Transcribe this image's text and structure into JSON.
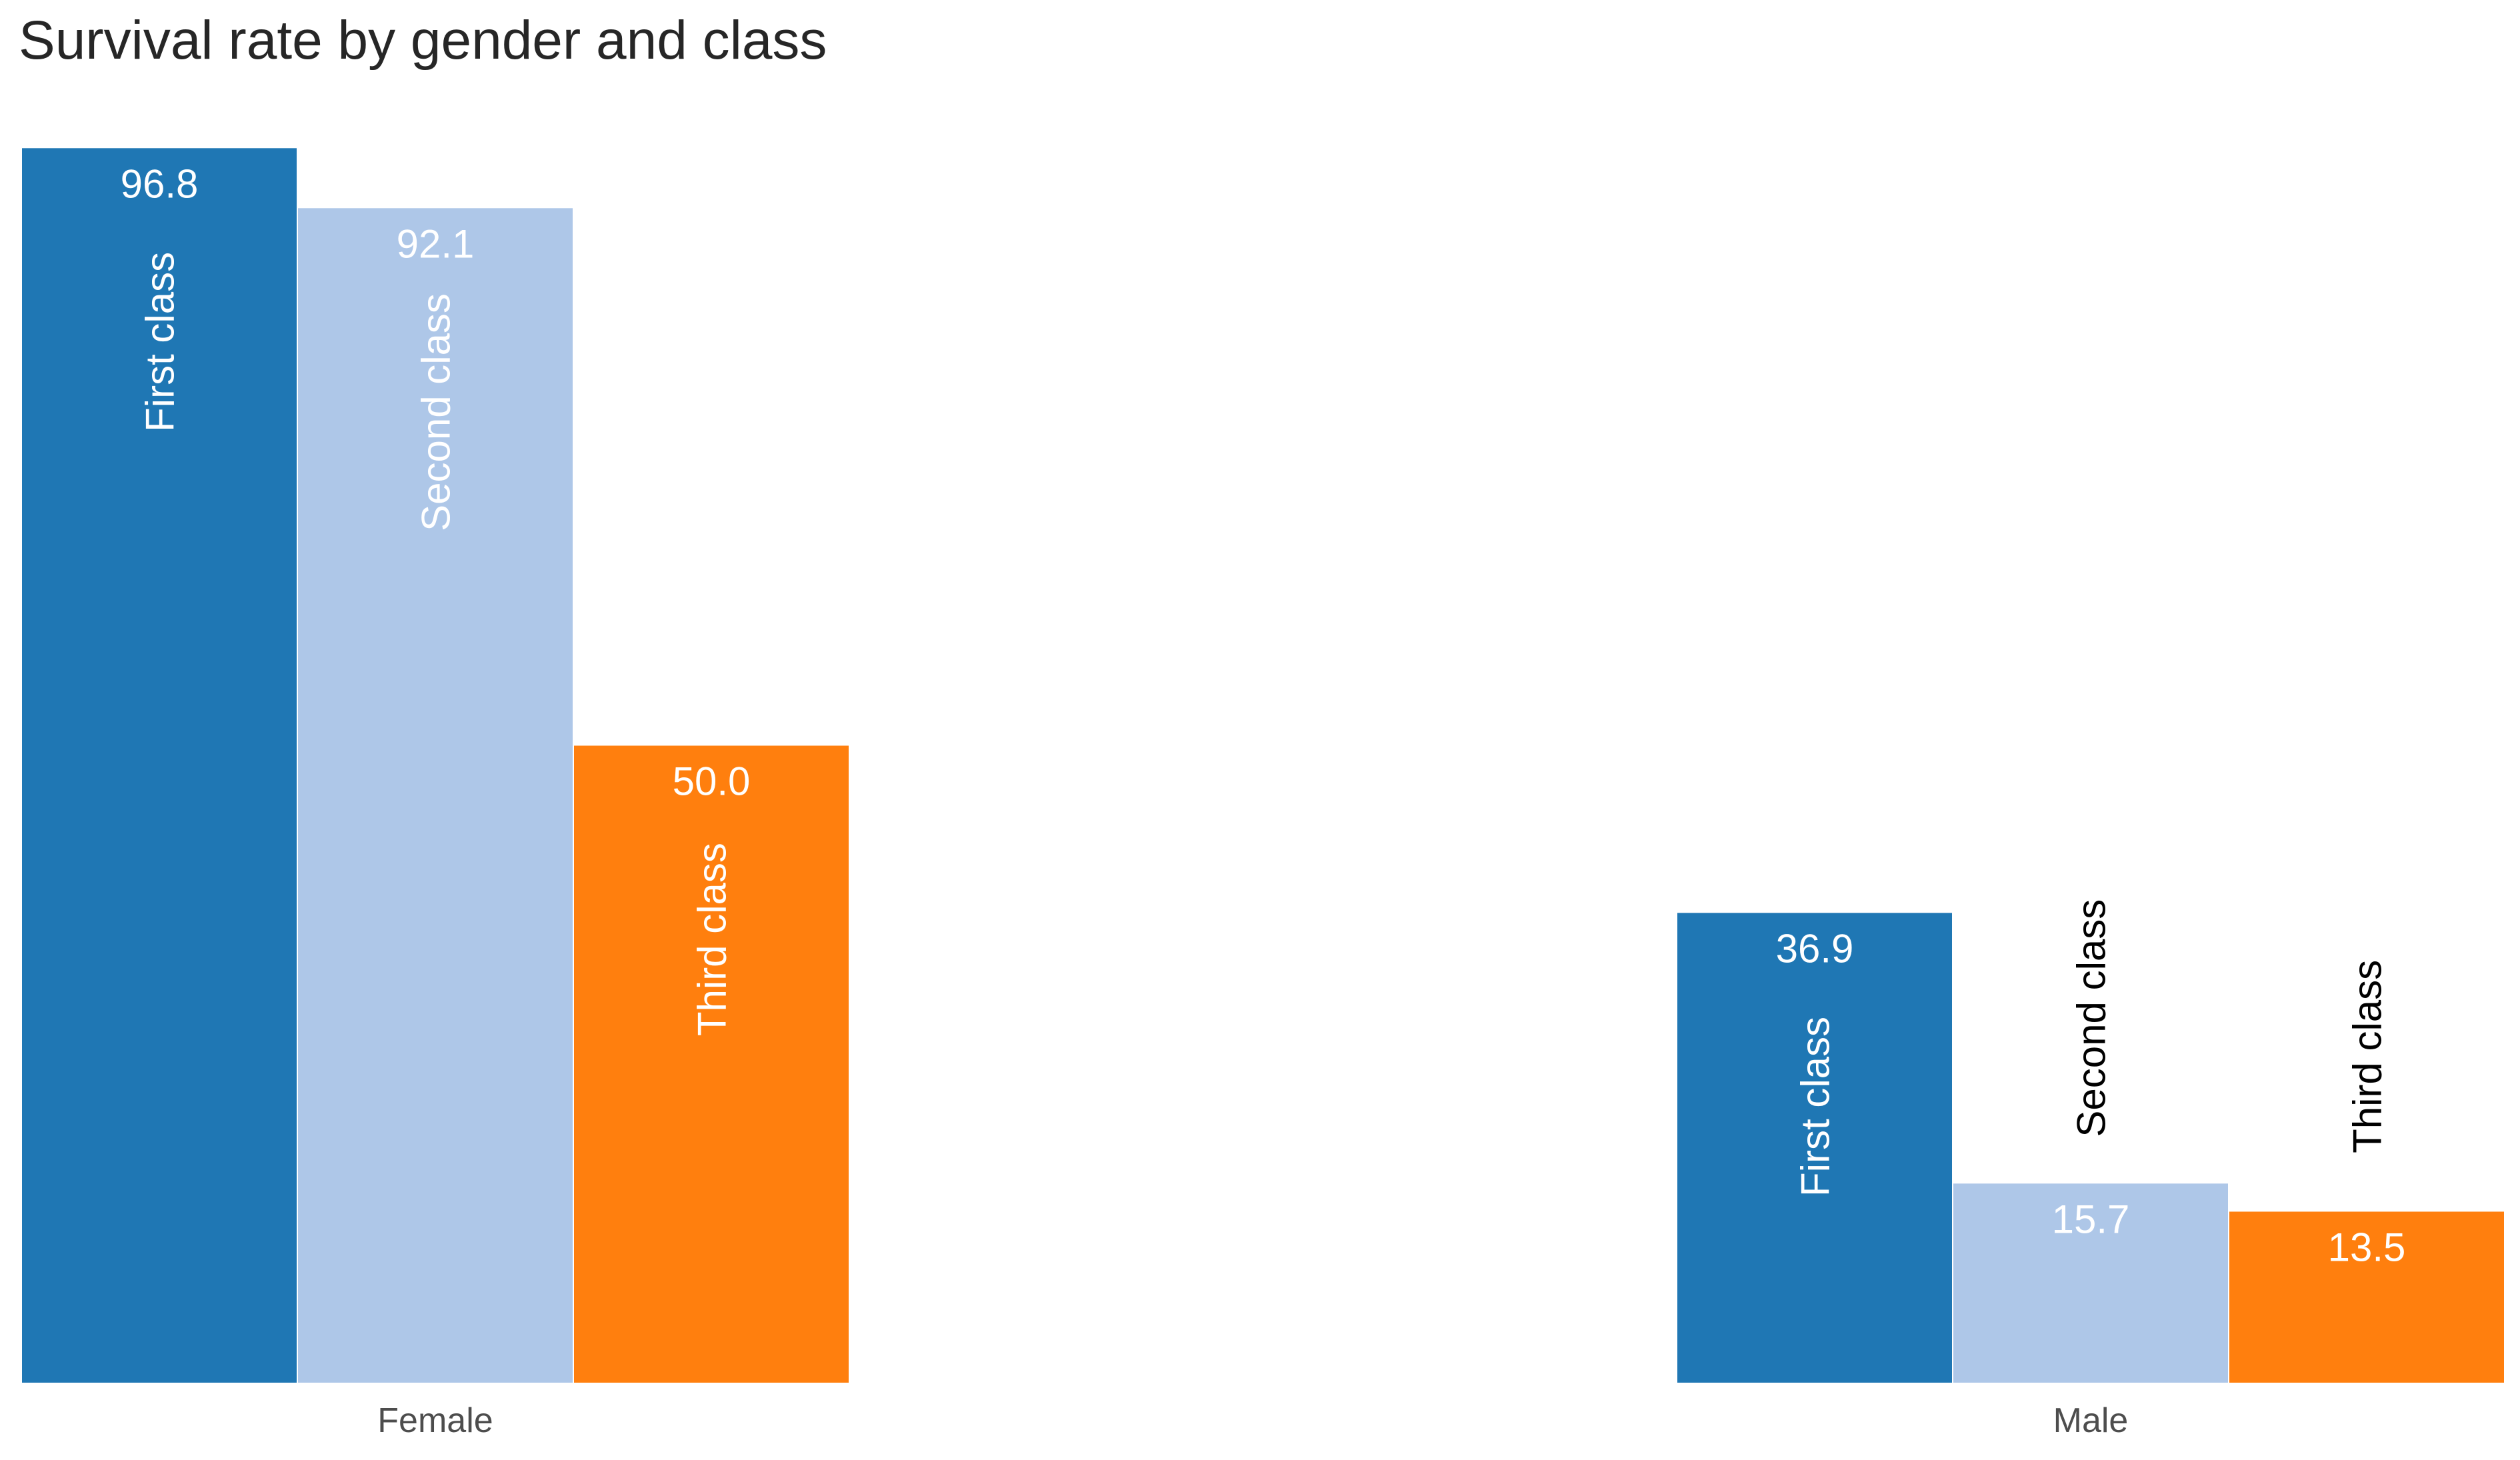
{
  "chart_data": {
    "type": "bar",
    "title": "Survival rate by gender and class",
    "xlabel": "",
    "ylabel": "",
    "ylim": [
      0,
      100
    ],
    "grid": false,
    "legend": "none",
    "categories": [
      "Female",
      "Male"
    ],
    "series": [
      {
        "name": "First class",
        "color": "#1f77b4",
        "values": [
          96.8,
          36.9
        ]
      },
      {
        "name": "Second class",
        "color": "#aec7e8",
        "values": [
          92.1,
          15.7
        ]
      },
      {
        "name": "Third class",
        "color": "#ff7f0e",
        "values": [
          50.0,
          13.5
        ]
      }
    ],
    "value_labels": [
      [
        "96.8",
        "36.9"
      ],
      [
        "92.1",
        "15.7"
      ],
      [
        "50.0",
        "13.5"
      ]
    ]
  }
}
